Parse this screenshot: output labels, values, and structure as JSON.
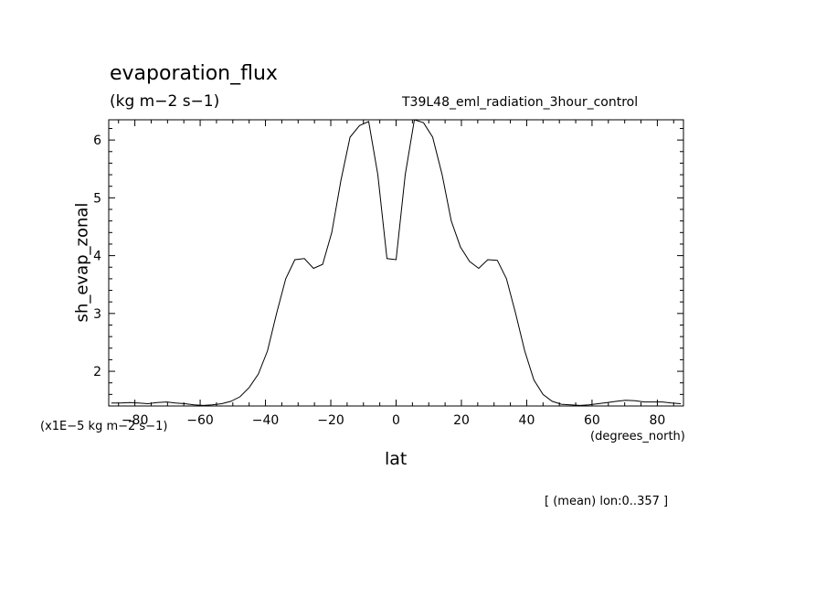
{
  "chart_data": {
    "type": "line",
    "title": "evaporation_flux",
    "units": "(kg m−2 s−1)",
    "run_label": "T39L48_eml_radiation_3hour_control",
    "xlabel": "lat",
    "x_units": "(degrees_north)",
    "ylabel": "sh_evap_zonal",
    "y_scale_label": "(x1E−5 kg m−2 s−1)",
    "footer": "[ (mean) lon:0..357 ]",
    "xlim": [
      -88,
      88
    ],
    "ylim": [
      1.4,
      6.35
    ],
    "x_ticks": [
      -80,
      -60,
      -40,
      -20,
      0,
      20,
      40,
      60,
      80
    ],
    "x_tick_labels": [
      "−80",
      "−60",
      "−40",
      "−20",
      "0",
      "20",
      "40",
      "60",
      "80"
    ],
    "y_ticks": [
      2,
      3,
      4,
      5,
      6
    ],
    "y_tick_labels": [
      "2",
      "3",
      "4",
      "5",
      "6"
    ],
    "grid": false,
    "series": [
      {
        "x": [
          -87.2,
          -84.4,
          -81.6,
          -78.8,
          -76.0,
          -73.2,
          -70.3,
          -67.5,
          -64.7,
          -61.9,
          -59.1,
          -56.3,
          -53.4,
          -50.6,
          -47.8,
          -45.0,
          -42.2,
          -39.4,
          -36.6,
          -33.8,
          -31.0,
          -28.1,
          -25.3,
          -22.5,
          -19.7,
          -16.9,
          -14.1,
          -11.2,
          -8.4,
          -5.6,
          -2.8,
          0.0,
          2.8,
          5.6,
          8.4,
          11.2,
          14.1,
          16.9,
          19.7,
          22.5,
          25.3,
          28.1,
          31.0,
          33.8,
          36.6,
          39.4,
          42.2,
          45.0,
          47.8,
          50.6,
          53.4,
          56.3,
          59.1,
          61.9,
          64.7,
          67.5,
          70.3,
          73.2,
          76.0,
          78.8,
          81.6,
          84.4,
          87.2
        ],
        "y": [
          1.45,
          1.45,
          1.46,
          1.45,
          1.44,
          1.46,
          1.47,
          1.45,
          1.44,
          1.42,
          1.41,
          1.42,
          1.44,
          1.48,
          1.56,
          1.72,
          1.95,
          2.35,
          3.0,
          3.6,
          3.93,
          3.95,
          3.78,
          3.85,
          4.4,
          5.3,
          6.05,
          6.25,
          6.32,
          5.4,
          3.95,
          3.93,
          5.4,
          6.35,
          6.3,
          6.05,
          5.4,
          4.6,
          4.15,
          3.9,
          3.78,
          3.93,
          3.92,
          3.6,
          3.0,
          2.35,
          1.85,
          1.6,
          1.48,
          1.43,
          1.42,
          1.41,
          1.42,
          1.44,
          1.46,
          1.48,
          1.5,
          1.49,
          1.47,
          1.47,
          1.47,
          1.45,
          1.44
        ]
      }
    ]
  }
}
